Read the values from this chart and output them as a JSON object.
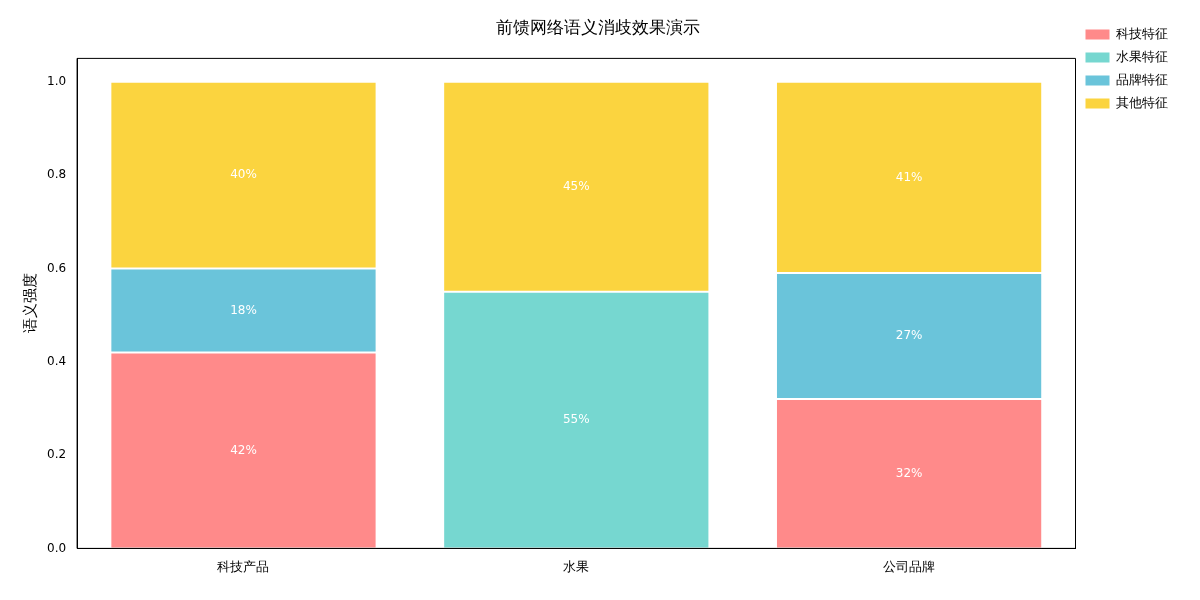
{
  "chart_data": {
    "type": "bar",
    "title": "前馈网络语义消歧效果演示",
    "ylabel": "语义强度",
    "categories": [
      "科技产品",
      "水果",
      "公司品牌"
    ],
    "stacked": true,
    "series": [
      {
        "name": "科技特征",
        "color": "#ff8a8a",
        "values": [
          0.42,
          0,
          0.32
        ],
        "value_labels": [
          "42%",
          null,
          "32%"
        ]
      },
      {
        "name": "水果特征",
        "color": "#76d7d0",
        "values": [
          0,
          0.55,
          0
        ],
        "value_labels": [
          null,
          "55%",
          null
        ]
      },
      {
        "name": "品牌特征",
        "color": "#6ac4da",
        "values": [
          0.18,
          0,
          0.27
        ],
        "value_labels": [
          "18%",
          null,
          "27%"
        ]
      },
      {
        "name": "其他特征",
        "color": "#fbd43f",
        "values": [
          0.4,
          0.45,
          0.41
        ],
        "value_labels": [
          "40%",
          "45%",
          "41%"
        ]
      }
    ],
    "ylim": [
      0,
      1.05
    ],
    "yticks": [
      {
        "value": 0,
        "label": "0.0"
      },
      0.2,
      0.4,
      0.6,
      0.8,
      {
        "value": 1,
        "label": "1.0"
      }
    ],
    "grid": false,
    "legend": "top right"
  }
}
